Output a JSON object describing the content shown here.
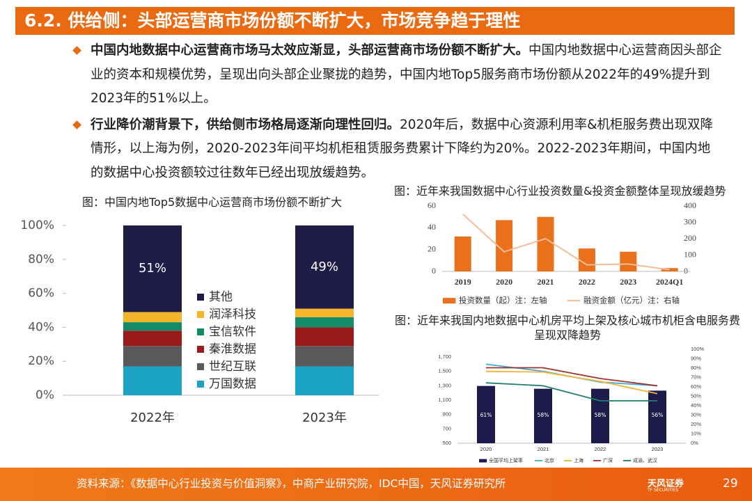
{
  "header": {
    "title": "6.2. 供给侧：头部运营商市场份额不断扩大，市场竞争趋于理性"
  },
  "bullets": [
    {
      "lead": "中国内地数据中心运营商市场马太效应渐显，头部运营商市场份额不断扩大。",
      "text": "中国内地数据中心运营商因头部企业的资本和规模优势，呈现出向头部企业聚拢的趋势，中国内地Top5服务商市场份额从2022年的49%提升到2023年的51%以上。"
    },
    {
      "lead": "行业降价潮背景下，供给侧市场格局逐渐向理性回归。",
      "text": "2020年后，数据中心资源利用率&机柜服务费出现双降情形，以上海为例，2020-2023年间平均机柜租赁服务费累计下降约为20%。2022-2023年期间，中国内地的数据中心投资额较过往数年已经出现放缓趋势。"
    }
  ],
  "chart_data": [
    {
      "type": "stacked_bar",
      "title": "图：中国内地Top5数据中心运营商市场份额不断扩大",
      "categories": [
        "2022年",
        "2023年"
      ],
      "series": [
        {
          "name": "万国数据",
          "color": "#1aa3c4",
          "values": [
            17,
            17
          ]
        },
        {
          "name": "世纪互联",
          "color": "#595959",
          "values": [
            12,
            12
          ]
        },
        {
          "name": "秦淮数据",
          "color": "#9a1a1a",
          "values": [
            9,
            11
          ]
        },
        {
          "name": "宝信软件",
          "color": "#138a68",
          "values": [
            5,
            6
          ]
        },
        {
          "name": "润泽科技",
          "color": "#f4b52a",
          "values": [
            6,
            5
          ]
        },
        {
          "name": "其他",
          "color": "#1f1c48",
          "values": [
            51,
            49
          ],
          "value_labels": [
            "51%",
            "49%"
          ]
        }
      ],
      "ylim": [
        0,
        100
      ],
      "yticks": [
        {
          "value": 0,
          "label": "0%"
        },
        {
          "value": 20,
          "label": "20%"
        },
        {
          "value": 40,
          "label": "40%"
        },
        {
          "value": 60,
          "label": "60%"
        },
        {
          "value": 80,
          "label": "80%"
        },
        {
          "value": 100,
          "label": "100%"
        }
      ],
      "legend": "right"
    },
    {
      "type": "bar_line",
      "title": "图：近年来我国数据中心行业投资数量&投资金额整体呈现放缓趋势",
      "categories": [
        "2019",
        "2020",
        "2021",
        "2022",
        "2023",
        "2024Q1"
      ],
      "series": [
        {
          "name": "投资数量（起）注：左轴",
          "type": "bar",
          "color": "#e9711c",
          "values": [
            32,
            47,
            50,
            21,
            18,
            3
          ]
        },
        {
          "name": "融资金额（亿元）注：右轴",
          "type": "line",
          "axis": "y2",
          "color": "#f6bb98",
          "values": [
            350,
            120,
            200,
            40,
            45,
            10
          ]
        }
      ],
      "ylim": [
        0,
        60
      ],
      "yticks": [
        0,
        20,
        40,
        60
      ],
      "y2lim": [
        0,
        400
      ],
      "y2ticks": [
        0,
        100,
        200,
        300,
        400
      ],
      "legend": "bottom"
    },
    {
      "type": "bar_line",
      "title": "图：近年来我国内地数据中心机房平均上架及核心城市机柜含电服务费呈现双降趋势",
      "categories": [
        "2020",
        "2021",
        "2022",
        "2023"
      ],
      "series": [
        {
          "name": "全国平均上架率",
          "type": "bar",
          "axis": "y2",
          "color": "#1c1b4b",
          "values": [
            61,
            58,
            58,
            56
          ],
          "value_labels": [
            "61%",
            "58%",
            "58%",
            "56%"
          ]
        },
        {
          "name": "北京",
          "type": "line",
          "color": "#3daad8",
          "values": [
            1600,
            1500,
            1350,
            1300
          ]
        },
        {
          "name": "上海",
          "type": "line",
          "color": "#f2b233",
          "values": [
            1500,
            1490,
            1360,
            1190
          ]
        },
        {
          "name": "广深",
          "type": "line",
          "color": "#a0302a",
          "values": [
            1550,
            1550,
            1400,
            1300
          ]
        },
        {
          "name": "成渝、武汉",
          "type": "line",
          "color": "#1e7f6e",
          "values": [
            1340,
            1300,
            1090,
            1090
          ]
        }
      ],
      "ylim": [
        500,
        1700
      ],
      "yticks": [
        500,
        700,
        900,
        {
          "value": 1100,
          "label": "1,100"
        },
        {
          "value": 1300,
          "label": "1,300"
        },
        {
          "value": 1500,
          "label": "1,500"
        },
        {
          "value": 1700,
          "label": "1,700"
        }
      ],
      "y2lim": [
        0,
        100
      ],
      "y2ticks": [
        {
          "value": 0,
          "label": "0%"
        },
        {
          "value": 10,
          "label": "10%"
        },
        {
          "value": 20,
          "label": "20%"
        },
        {
          "value": 30,
          "label": "30%"
        },
        {
          "value": 40,
          "label": "40%"
        },
        {
          "value": 50,
          "label": "50%"
        },
        {
          "value": 60,
          "label": "60%"
        },
        {
          "value": 70,
          "label": "70%"
        },
        {
          "value": 80,
          "label": "80%"
        },
        {
          "value": 90,
          "label": "90%"
        },
        {
          "value": 100,
          "label": "100%"
        }
      ],
      "legend": "bottom"
    }
  ],
  "footer": {
    "source": "资料来源：《数据中心行业投资与价值洞察》，中商产业研究院，IDC中国，天风证券研究所",
    "logo": "天风证券",
    "logo_en": "TF SECURITIES",
    "page": 29
  }
}
